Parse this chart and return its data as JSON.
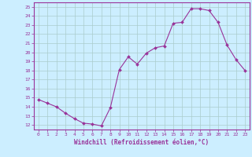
{
  "x": [
    0,
    1,
    2,
    3,
    4,
    5,
    6,
    7,
    8,
    9,
    10,
    11,
    12,
    13,
    14,
    15,
    16,
    17,
    18,
    19,
    20,
    21,
    22,
    23
  ],
  "y": [
    14.8,
    14.4,
    14.0,
    13.3,
    12.7,
    12.2,
    12.1,
    11.9,
    13.9,
    18.1,
    19.5,
    18.7,
    19.9,
    20.5,
    20.7,
    23.2,
    23.3,
    24.8,
    24.8,
    24.6,
    23.3,
    20.8,
    19.2,
    18.0
  ],
  "xlim": [
    -0.5,
    23.5
  ],
  "ylim": [
    11.5,
    25.5
  ],
  "yticks": [
    12,
    13,
    14,
    15,
    16,
    17,
    18,
    19,
    20,
    21,
    22,
    23,
    24,
    25
  ],
  "xticks": [
    0,
    1,
    2,
    3,
    4,
    5,
    6,
    7,
    8,
    9,
    10,
    11,
    12,
    13,
    14,
    15,
    16,
    17,
    18,
    19,
    20,
    21,
    22,
    23
  ],
  "xlabel": "Windchill (Refroidissement éolien,°C)",
  "line_color": "#993399",
  "marker_color": "#993399",
  "bg_color": "#cceeff",
  "grid_color": "#aacccc",
  "axis_color": "#993399",
  "tick_label_color": "#993399",
  "xlabel_color": "#993399"
}
